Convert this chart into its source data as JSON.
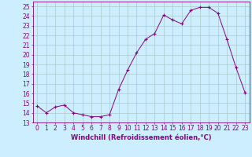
{
  "x": [
    0,
    1,
    2,
    3,
    4,
    5,
    6,
    7,
    8,
    9,
    10,
    11,
    12,
    13,
    14,
    15,
    16,
    17,
    18,
    19,
    20,
    21,
    22,
    23
  ],
  "y": [
    14.7,
    14.0,
    14.6,
    14.8,
    14.0,
    13.8,
    13.6,
    13.6,
    13.8,
    16.4,
    18.4,
    20.2,
    21.6,
    22.2,
    24.1,
    23.6,
    23.2,
    24.6,
    24.9,
    24.9,
    24.3,
    21.6,
    18.7,
    16.1
  ],
  "line_color": "#880088",
  "marker": "+",
  "marker_color": "#880088",
  "bg_color": "#cceeff",
  "grid_color": "#aacccc",
  "axis_color": "#880088",
  "tick_color": "#880088",
  "xlabel": "Windchill (Refroidissement éolien,°C)",
  "ylabel_ticks": [
    13,
    14,
    15,
    16,
    17,
    18,
    19,
    20,
    21,
    22,
    23,
    24,
    25
  ],
  "xlim": [
    -0.5,
    23.5
  ],
  "ylim": [
    13,
    25.5
  ],
  "font_color": "#880088",
  "tick_font_size": 5.5,
  "xlabel_font_size": 6.0
}
